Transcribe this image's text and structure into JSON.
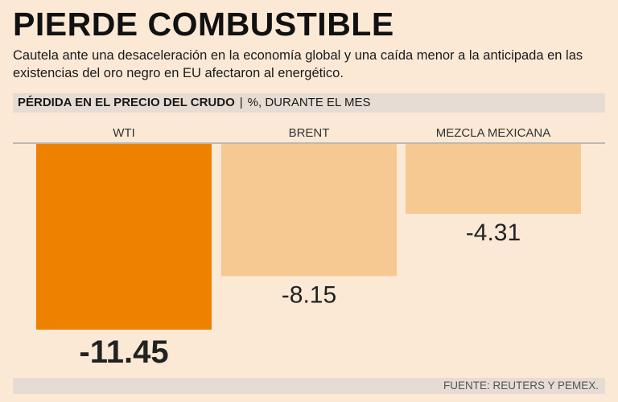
{
  "header": {
    "title": "PIERDE COMBUSTIBLE",
    "subtitle": "Cautela ante una desaceleración en la economía global y una caída menor a la anticipada en las existencias del oro negro en EU afectaron al energético."
  },
  "chart_header": {
    "label": "PÉRDIDA EN EL PRECIO DEL CRUDO",
    "separator": "|",
    "unit": "%, DURANTE EL MES"
  },
  "footer": {
    "source": "FUENTE: REUTERS Y PEMEX."
  },
  "colors": {
    "background": "#fbe9d6",
    "highlight_bar": "#ee8200",
    "muted_bar": "#f6c992",
    "baseline": "#9a9a9a"
  },
  "chart_data": {
    "type": "bar",
    "title": "PÉRDIDA EN EL PRECIO DEL CRUDO",
    "ylabel": "%, DURANTE EL MES",
    "categories": [
      "WTI",
      "BRENT",
      "MEZCLA MEXICANA"
    ],
    "values": [
      -11.45,
      -8.15,
      -4.31
    ],
    "value_labels": [
      "-11.45",
      "-8.15",
      "-4.31"
    ],
    "highlight": "WTI",
    "ylim": [
      -11.45,
      0
    ]
  }
}
